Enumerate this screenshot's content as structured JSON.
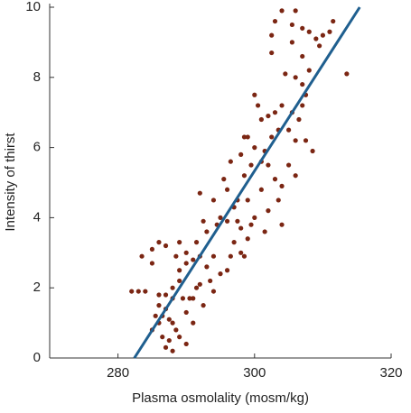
{
  "chart_data": {
    "type": "scatter",
    "xlabel": "Plasma osmolality (mosm/kg)",
    "ylabel": "Intensity of thirst",
    "xlim": [
      270,
      320
    ],
    "ylim": [
      0,
      10
    ],
    "xticks": [
      280,
      300,
      320
    ],
    "yticks": [
      0,
      2,
      4,
      6,
      8,
      10
    ],
    "color": "#7b2613",
    "x": [
      282,
      283,
      284,
      283.5,
      285,
      286,
      287,
      285,
      286,
      285.5,
      286,
      285,
      286.5,
      287,
      288,
      287.5,
      286,
      287,
      288,
      287,
      286.5,
      288,
      288.5,
      287.5,
      288,
      289,
      289,
      288.5,
      289,
      290,
      289.5,
      290.5,
      290,
      291,
      291.5,
      290,
      291,
      291.5,
      292,
      292,
      292.5,
      291,
      289,
      290,
      292,
      292.5,
      293,
      293,
      293.5,
      294,
      294.5,
      295,
      295.5,
      294,
      296,
      296.5,
      297,
      297.5,
      296,
      296.5,
      297,
      298,
      297.5,
      298,
      298.5,
      299,
      298.5,
      299,
      299.5,
      298,
      298.5,
      299,
      300,
      300.5,
      301,
      301,
      301.5,
      301.5,
      302,
      302.5,
      302,
      302.5,
      303,
      302.5,
      303,
      303.5,
      303,
      303.5,
      304,
      304,
      304,
      304.5,
      305,
      305,
      305.5,
      306,
      306,
      306.5,
      306,
      305.5,
      307,
      307,
      307,
      307.5,
      307,
      307.5,
      308,
      308,
      308.5,
      309,
      309.5,
      310,
      311,
      311.5,
      313.5,
      306,
      300,
      299.5,
      300,
      296,
      295,
      294,
      301,
      302,
      304,
      305.5
    ],
    "y": [
      1.9,
      1.9,
      1.9,
      2.9,
      3.1,
      3.3,
      3.2,
      2.7,
      1.5,
      1.2,
      1.0,
      0.8,
      0.6,
      0.3,
      0.2,
      0.5,
      1.8,
      1.8,
      1.7,
      1.4,
      1.2,
      1.0,
      0.8,
      1.1,
      2.0,
      2.2,
      2.5,
      2.9,
      3.3,
      3.0,
      1.7,
      1.7,
      1.3,
      1.7,
      2.0,
      2.7,
      2.8,
      3.3,
      2.9,
      2.1,
      1.5,
      1.0,
      0.6,
      0.4,
      4.7,
      3.9,
      3.6,
      2.6,
      2.2,
      2.9,
      3.8,
      4.0,
      5.1,
      4.5,
      4.8,
      5.6,
      4.3,
      3.9,
      2.5,
      2.9,
      3.3,
      3.0,
      4.5,
      5.8,
      6.3,
      6.3,
      5.2,
      4.5,
      3.8,
      3.7,
      2.9,
      3.4,
      7.5,
      7.2,
      5.6,
      4.8,
      5.9,
      3.6,
      6.9,
      6.3,
      5.5,
      8.7,
      9.6,
      9.2,
      7.0,
      6.5,
      5.1,
      4.5,
      3.8,
      9.9,
      7.2,
      8.1,
      6.5,
      5.5,
      7.0,
      9.9,
      8.0,
      6.8,
      6.2,
      9.0,
      9.4,
      7.8,
      8.6,
      7.5,
      7.2,
      6.2,
      9.3,
      8.2,
      5.9,
      9.1,
      8.9,
      9.2,
      9.3,
      9.6,
      8.1,
      5.2,
      6.0,
      5.5,
      4.0,
      3.9,
      2.4,
      1.9,
      6.8,
      4.2,
      4.9,
      9.5
    ],
    "fit_line": {
      "x": [
        282.4,
        315.4
      ],
      "y": [
        0,
        10
      ],
      "color": "#1f5f8f"
    }
  }
}
